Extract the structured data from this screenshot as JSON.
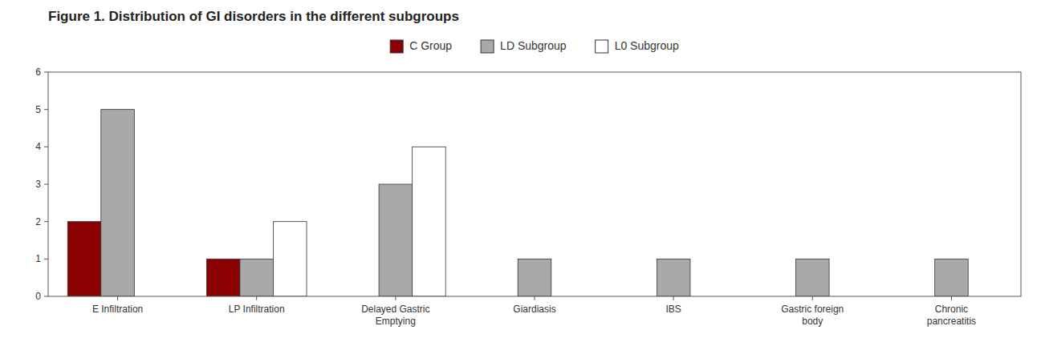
{
  "chart_data": {
    "type": "bar",
    "title": "Figure 1. Distribution of GI disorders in the different subgroups",
    "categories": [
      "E Infiltration",
      "LP Infiltration",
      "Delayed Gastric\nEmptying",
      "Giardiasis",
      "IBS",
      "Gastric foreign\nbody",
      "Chronic\npancreatitis"
    ],
    "series": [
      {
        "name": "C Group",
        "color": "#8B0000",
        "values": [
          2,
          1,
          0,
          0,
          0,
          0,
          0
        ]
      },
      {
        "name": "LD Subgroup",
        "color": "#A9A9A9",
        "values": [
          5,
          1,
          3,
          1,
          1,
          1,
          1
        ]
      },
      {
        "name": "L0 Subgroup",
        "color": "#FFFFFF",
        "values": [
          0,
          2,
          4,
          0,
          0,
          0,
          0
        ]
      }
    ],
    "ylim": [
      0,
      6
    ],
    "yticks": [
      0,
      1,
      2,
      3,
      4,
      5,
      6
    ],
    "grid": false,
    "legend": "top"
  }
}
